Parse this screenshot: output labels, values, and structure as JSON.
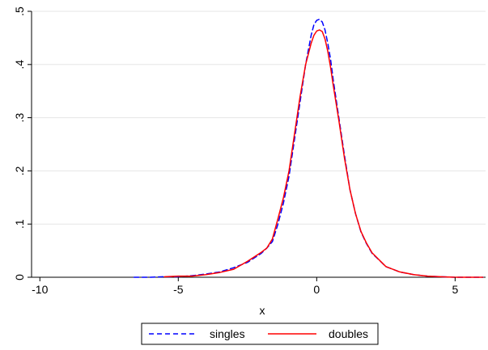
{
  "chart_data": {
    "type": "line",
    "xlabel": "x",
    "ylabel": "",
    "xlim": [
      -10.3,
      6.1
    ],
    "ylim": [
      0,
      0.5
    ],
    "x_ticks": [
      -10,
      -5,
      0,
      5
    ],
    "x_tick_labels": [
      "-10",
      "-5",
      "0",
      "5"
    ],
    "y_ticks": [
      0,
      0.1,
      0.2,
      0.3,
      0.4,
      0.5
    ],
    "y_tick_labels": [
      "0",
      ".1",
      ".2",
      ".3",
      ".4",
      ".5"
    ],
    "grid": "horizontal",
    "legend_position": "bottom",
    "series": [
      {
        "name": "singles",
        "color": "#0000ff",
        "line_style": "dashed",
        "x": [
          -6.6,
          -6.0,
          -5.5,
          -5.0,
          -4.5,
          -4.0,
          -3.5,
          -3.0,
          -2.5,
          -2.0,
          -1.8,
          -1.6,
          -1.4,
          -1.2,
          -1.0,
          -0.8,
          -0.6,
          -0.4,
          -0.2,
          -0.1,
          0.0,
          0.1,
          0.2,
          0.3,
          0.4,
          0.5,
          0.6,
          0.8,
          1.0,
          1.2,
          1.4,
          1.6,
          1.8,
          2.0,
          2.5,
          3.0,
          3.5,
          4.0,
          4.5,
          5.0,
          5.5,
          6.0
        ],
        "y": [
          0.0,
          0.0,
          0.001,
          0.001,
          0.003,
          0.006,
          0.01,
          0.018,
          0.028,
          0.045,
          0.055,
          0.067,
          0.1,
          0.14,
          0.19,
          0.26,
          0.33,
          0.4,
          0.455,
          0.475,
          0.483,
          0.485,
          0.48,
          0.465,
          0.44,
          0.41,
          0.37,
          0.3,
          0.23,
          0.165,
          0.12,
          0.085,
          0.063,
          0.045,
          0.02,
          0.01,
          0.005,
          0.002,
          0.001,
          0.0,
          0.0,
          0.0
        ]
      },
      {
        "name": "doubles",
        "color": "#ff0000",
        "line_style": "solid",
        "x": [
          -5.5,
          -5.0,
          -4.5,
          -4.0,
          -3.5,
          -3.0,
          -2.5,
          -2.0,
          -1.8,
          -1.6,
          -1.4,
          -1.2,
          -1.0,
          -0.8,
          -0.6,
          -0.4,
          -0.2,
          -0.1,
          0.0,
          0.1,
          0.2,
          0.3,
          0.4,
          0.5,
          0.6,
          0.8,
          1.0,
          1.2,
          1.4,
          1.6,
          1.8,
          2.0,
          2.5,
          3.0,
          3.5,
          4.0,
          4.5,
          5.0,
          5.5,
          6.0
        ],
        "y": [
          0.001,
          0.002,
          0.002,
          0.005,
          0.009,
          0.015,
          0.03,
          0.047,
          0.055,
          0.072,
          0.11,
          0.15,
          0.2,
          0.27,
          0.34,
          0.4,
          0.44,
          0.455,
          0.463,
          0.465,
          0.462,
          0.448,
          0.425,
          0.395,
          0.36,
          0.295,
          0.225,
          0.165,
          0.12,
          0.086,
          0.064,
          0.046,
          0.02,
          0.01,
          0.005,
          0.002,
          0.001,
          0.0,
          0.0,
          0.0
        ]
      }
    ]
  }
}
